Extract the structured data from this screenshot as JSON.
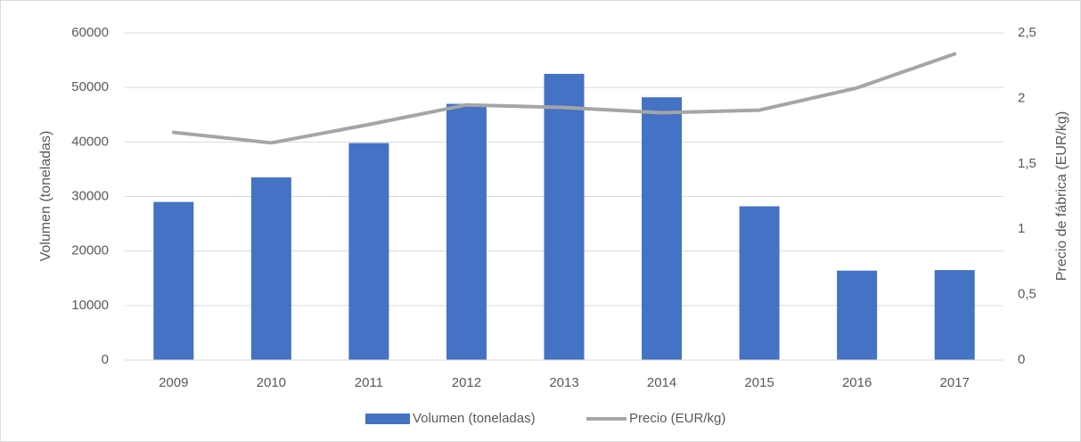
{
  "chart_data": {
    "type": "bar",
    "categories": [
      "2009",
      "2010",
      "2011",
      "2012",
      "2013",
      "2014",
      "2015",
      "2016",
      "2017"
    ],
    "series": [
      {
        "name": "Volumen (toneladas)",
        "type": "bar",
        "color": "#4472c4",
        "values": [
          29000,
          33500,
          39800,
          47000,
          52500,
          48200,
          28200,
          16400,
          16500
        ]
      },
      {
        "name": "Precio (EUR/kg)",
        "type": "line",
        "axis": "y2",
        "color": "#a5a5a5",
        "values": [
          1.74,
          1.66,
          1.8,
          1.95,
          1.93,
          1.89,
          1.91,
          2.08,
          2.34
        ]
      }
    ],
    "ylabel": "Volumen (toneladas)",
    "y2label": "Precio de fábrica (EUR/kg)",
    "ylim": [
      0,
      60000
    ],
    "yticks": [
      0,
      10000,
      20000,
      30000,
      40000,
      50000,
      60000
    ],
    "y2lim": [
      0,
      2.5
    ],
    "y2ticks": [
      0,
      {
        "value": 0.5,
        "label": "0,5"
      },
      1,
      {
        "value": 1.5,
        "label": "1,5"
      },
      2,
      {
        "value": 2.5,
        "label": "2,5"
      }
    ],
    "grid": true,
    "legend": "bottom"
  }
}
